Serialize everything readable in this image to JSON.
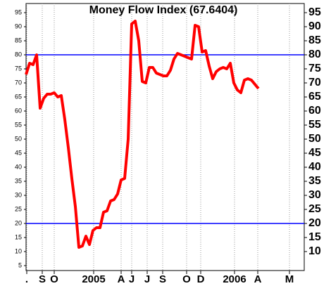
{
  "chart_data": {
    "type": "line",
    "title": "Money Flow Index (67.6404)",
    "series": [
      {
        "name": "Money Flow Index",
        "color": "#ff0000",
        "values": [
          73,
          77,
          76.5,
          80,
          61,
          64.5,
          66,
          66,
          66.5,
          65,
          65.5,
          57,
          47,
          36,
          26,
          11.5,
          12,
          15.5,
          12.5,
          17.5,
          18.5,
          18.5,
          24,
          24.5,
          28,
          28.5,
          30.5,
          35.5,
          36,
          50,
          91,
          92,
          85,
          70.5,
          70,
          75.5,
          75.5,
          73.5,
          73,
          72.5,
          72.5,
          74.5,
          78.5,
          80.5,
          80,
          79.5,
          79,
          78.5,
          90.5,
          90,
          81,
          81.5,
          76,
          71.5,
          74,
          75,
          75.5,
          75,
          77,
          70,
          67.5,
          66.5,
          71,
          71.5,
          71,
          69.5,
          68
        ]
      }
    ],
    "xlim": [
      0,
      79
    ],
    "xticks": [
      {
        "value": 0.2,
        "label": "."
      },
      {
        "value": 4.6,
        "label": "S"
      },
      {
        "value": 8,
        "label": "O"
      },
      {
        "value": 19.2,
        "label": "2005"
      },
      {
        "value": 27,
        "label": "A"
      },
      {
        "value": 30,
        "label": "J"
      },
      {
        "value": 34.4,
        "label": "J"
      },
      {
        "value": 38.8,
        "label": "S"
      },
      {
        "value": 45.6,
        "label": "O"
      },
      {
        "value": 49.6,
        "label": "D"
      },
      {
        "value": 59.2,
        "label": "2006"
      },
      {
        "value": 65.8,
        "label": "A"
      },
      {
        "value": 74.8,
        "label": "M"
      }
    ],
    "ylim": [
      3.25,
      98.25
    ],
    "yticks": [
      5,
      10,
      15,
      20,
      25,
      30,
      35,
      40,
      45,
      50,
      55,
      60,
      65,
      70,
      75,
      80,
      85,
      90,
      95
    ],
    "y2lim": [
      3.25,
      98.25
    ],
    "y2ticks": [
      10,
      15,
      20,
      25,
      30,
      35,
      40,
      45,
      50,
      55,
      60,
      65,
      70,
      75,
      80,
      85,
      90,
      95
    ],
    "reference_lines": [
      20,
      80
    ],
    "reference_color": "#0000ff",
    "grid": true
  }
}
